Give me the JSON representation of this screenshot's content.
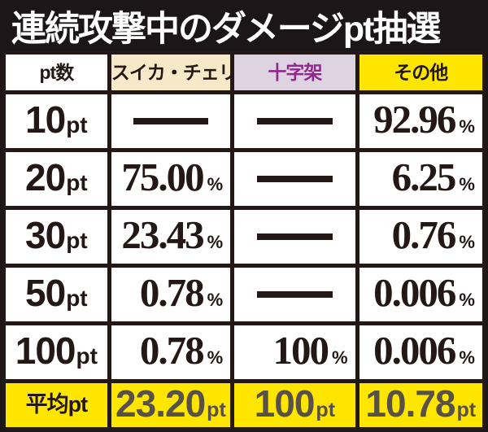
{
  "title": "連続攻撃中のダメージpt抽選",
  "colors": {
    "background": "#1c1619",
    "grid_line": "#231815",
    "cell_white": "#ffffff",
    "suika_header_bg": "#f7e9c7",
    "cross_header_bg": "#ddd3e1",
    "cross_header_text": "#8e2a8a",
    "accent_yellow": "#ffe600",
    "avg_value_text": "#5a5146",
    "title_text": "#ffffff"
  },
  "table": {
    "columns": [
      {
        "id": "pt",
        "label": "pt数"
      },
      {
        "id": "suika_cherry",
        "label": "スイカ・チェリー"
      },
      {
        "id": "cross",
        "label": "十字架"
      },
      {
        "id": "other",
        "label": "その他"
      }
    ],
    "rows": [
      {
        "label": {
          "num": "10",
          "unit": "pt"
        },
        "suika_cherry": {
          "dash": true
        },
        "cross": {
          "dash": true
        },
        "other": {
          "num": "92.96",
          "unit": "%"
        }
      },
      {
        "label": {
          "num": "20",
          "unit": "pt"
        },
        "suika_cherry": {
          "num": "75.00",
          "unit": "%"
        },
        "cross": {
          "dash": true
        },
        "other": {
          "num": "6.25",
          "unit": "%"
        }
      },
      {
        "label": {
          "num": "30",
          "unit": "pt"
        },
        "suika_cherry": {
          "num": "23.43",
          "unit": "%"
        },
        "cross": {
          "dash": true
        },
        "other": {
          "num": "0.76",
          "unit": "%"
        }
      },
      {
        "label": {
          "num": "50",
          "unit": "pt"
        },
        "suika_cherry": {
          "num": "0.78",
          "unit": "%"
        },
        "cross": {
          "dash": true
        },
        "other": {
          "num": "0.006",
          "unit": "%"
        }
      },
      {
        "label": {
          "num": "100",
          "unit": "pt"
        },
        "suika_cherry": {
          "num": "0.78",
          "unit": "%"
        },
        "cross": {
          "num": "100",
          "unit": "%"
        },
        "other": {
          "num": "0.006",
          "unit": "%"
        }
      }
    ],
    "footer": {
      "label": "平均pt",
      "suika_cherry": {
        "num": "23.20",
        "unit": "pt"
      },
      "cross": {
        "num": "100",
        "unit": "pt"
      },
      "other": {
        "num": "10.78",
        "unit": "pt"
      }
    }
  },
  "chart_data": {
    "type": "table",
    "title": "連続攻撃中のダメージpt抽選",
    "columns": [
      "pt数",
      "スイカ・チェリー",
      "十字架",
      "その他"
    ],
    "rows": [
      [
        "10pt",
        "—",
        "—",
        "92.96%"
      ],
      [
        "20pt",
        "75.00%",
        "—",
        "6.25%"
      ],
      [
        "30pt",
        "23.43%",
        "—",
        "0.76%"
      ],
      [
        "50pt",
        "0.78%",
        "—",
        "0.006%"
      ],
      [
        "100pt",
        "0.78%",
        "100%",
        "0.006%"
      ],
      [
        "平均pt",
        "23.20pt",
        "100pt",
        "10.78pt"
      ]
    ],
    "notes_units": {
      "percent_rows_unit": "%",
      "average_row_unit": "pt"
    }
  }
}
